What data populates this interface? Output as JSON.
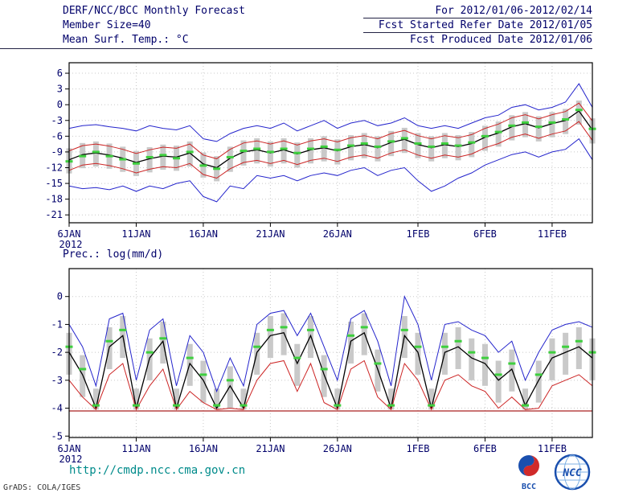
{
  "header": {
    "left_lines": [
      "DERF/NCC/BCC Monthly Forecast",
      "Member Size=40",
      "Mean Surf. Temp.: °C"
    ],
    "right_lines": [
      "For 2012/01/06-2012/02/14",
      "Fcst Started Refer Date 2012/01/05",
      "Fcst Produced Date 2012/01/06"
    ]
  },
  "footer": {
    "url": "http://cmdp.ncc.cma.gov.cn",
    "credit": "GrADS: COLA/IGES",
    "logos": [
      "BCC",
      "NCC"
    ]
  },
  "colors": {
    "text": "#00006a",
    "frame": "#000000",
    "grid": "#c8c8c8",
    "url": "#008b8b",
    "blue": "#2424cc",
    "red": "#cc2424",
    "black": "#000000",
    "green": "#3ecf3e",
    "bars": "#c9c9c9",
    "floor": "#aa2222"
  },
  "chart_data": [
    {
      "type": "line",
      "panel": "temperature",
      "title": "Mean Surf. Temp.: °C",
      "year": "2012",
      "n_points": 40,
      "x_tick_labels": [
        "6JAN",
        "11JAN",
        "16JAN",
        "21JAN",
        "26JAN",
        "1FEB",
        "6FEB",
        "11FEB"
      ],
      "x_tick_index": [
        0,
        5,
        10,
        15,
        20,
        26,
        31,
        36
      ],
      "ylim": [
        -22.5,
        8
      ],
      "yticks": [
        6,
        3,
        0,
        -3,
        -6,
        -9,
        -12,
        -15,
        -18,
        -21
      ],
      "series": [
        {
          "name": "ensemble-max",
          "color": "#2424cc",
          "width": 1,
          "values": [
            -4.5,
            -4.0,
            -3.8,
            -4.2,
            -4.5,
            -5.0,
            -4.0,
            -4.5,
            -4.8,
            -4.0,
            -6.5,
            -7.0,
            -5.5,
            -4.5,
            -4.0,
            -4.5,
            -3.5,
            -5.0,
            -4.0,
            -3.0,
            -4.5,
            -3.5,
            -3.0,
            -4.0,
            -3.5,
            -2.5,
            -4.0,
            -4.5,
            -4.0,
            -4.5,
            -3.5,
            -2.5,
            -2.0,
            -0.5,
            0.0,
            -1.0,
            -0.5,
            0.5,
            4.0,
            -0.5
          ]
        },
        {
          "name": "upper-quartile",
          "color": "#cc2424",
          "width": 1,
          "values": [
            -8.8,
            -7.8,
            -7.5,
            -7.9,
            -8.5,
            -9.3,
            -8.6,
            -8.1,
            -8.3,
            -7.5,
            -9.6,
            -10.3,
            -8.5,
            -7.3,
            -6.9,
            -7.5,
            -6.9,
            -7.7,
            -6.9,
            -6.5,
            -7.1,
            -6.3,
            -5.9,
            -6.5,
            -5.5,
            -4.9,
            -5.9,
            -6.5,
            -5.9,
            -6.3,
            -5.7,
            -4.5,
            -3.7,
            -2.5,
            -1.9,
            -2.7,
            -1.9,
            -1.3,
            0.3,
            -3.1
          ]
        },
        {
          "name": "ensemble-mean",
          "color": "#000000",
          "width": 1.3,
          "values": [
            -10.5,
            -9.5,
            -9.2,
            -9.6,
            -10.2,
            -11.0,
            -10.3,
            -9.8,
            -10.0,
            -9.2,
            -11.3,
            -12.0,
            -10.2,
            -9.0,
            -8.6,
            -9.2,
            -8.6,
            -9.4,
            -8.6,
            -8.2,
            -8.8,
            -8.0,
            -7.6,
            -8.2,
            -7.2,
            -6.6,
            -7.6,
            -8.2,
            -7.6,
            -8.0,
            -7.4,
            -6.2,
            -5.4,
            -4.2,
            -3.6,
            -4.4,
            -3.6,
            -3.0,
            -1.2,
            -4.8
          ]
        },
        {
          "name": "lower-quartile",
          "color": "#cc2424",
          "width": 1,
          "values": [
            -12.5,
            -11.5,
            -11.2,
            -11.6,
            -12.2,
            -13.0,
            -12.3,
            -11.8,
            -12.0,
            -11.2,
            -13.3,
            -14.0,
            -12.2,
            -11.0,
            -10.6,
            -11.2,
            -10.6,
            -11.4,
            -10.6,
            -10.2,
            -10.8,
            -10.0,
            -9.6,
            -10.2,
            -9.2,
            -8.6,
            -9.6,
            -10.2,
            -9.6,
            -10.0,
            -9.4,
            -8.2,
            -7.4,
            -6.2,
            -5.6,
            -6.4,
            -5.6,
            -5.0,
            -3.2,
            -6.8
          ]
        },
        {
          "name": "ensemble-min",
          "color": "#2424cc",
          "width": 1,
          "values": [
            -15.5,
            -16.0,
            -15.8,
            -16.2,
            -15.5,
            -16.5,
            -15.5,
            -16.0,
            -15.0,
            -14.5,
            -17.5,
            -18.5,
            -15.5,
            -16.0,
            -13.5,
            -14.0,
            -13.5,
            -14.5,
            -13.5,
            -13.0,
            -13.5,
            -12.5,
            -12.0,
            -13.5,
            -12.5,
            -12.0,
            -14.5,
            -16.5,
            -15.5,
            -14.0,
            -13.0,
            -11.5,
            -10.5,
            -9.5,
            -9.0,
            -10.0,
            -9.0,
            -8.5,
            -6.5,
            -10.5
          ]
        }
      ],
      "markers": {
        "name": "median",
        "color": "#3ecf3e",
        "values": [
          -10.8,
          -9.8,
          -9.0,
          -9.8,
          -10.4,
          -11.2,
          -10.0,
          -9.6,
          -10.2,
          -9.0,
          -11.6,
          -12.2,
          -10.0,
          -8.8,
          -8.4,
          -9.0,
          -8.4,
          -9.2,
          -8.4,
          -8.0,
          -8.6,
          -7.8,
          -7.4,
          -8.0,
          -7.0,
          -6.4,
          -7.4,
          -8.0,
          -7.4,
          -7.8,
          -7.2,
          -6.0,
          -5.2,
          -4.0,
          -3.4,
          -4.2,
          -3.4,
          -2.8,
          -1.0,
          -4.6
        ]
      },
      "bars": {
        "name": "ensemble-spread",
        "color": "#c9c9c9",
        "top": [
          -8.3,
          -7.3,
          -7.0,
          -7.4,
          -8.0,
          -8.8,
          -8.1,
          -7.6,
          -7.8,
          -7.0,
          -9.1,
          -9.8,
          -8.0,
          -6.8,
          -6.4,
          -7.0,
          -6.4,
          -7.2,
          -6.4,
          -6.0,
          -6.6,
          -5.8,
          -5.4,
          -6.0,
          -5.0,
          -4.4,
          -5.4,
          -6.0,
          -5.4,
          -5.8,
          -5.2,
          -4.0,
          -3.2,
          -2.0,
          -1.4,
          -2.2,
          -1.4,
          -0.8,
          0.8,
          -2.6
        ],
        "bottom": [
          -13.1,
          -12.1,
          -11.8,
          -12.2,
          -12.8,
          -13.6,
          -12.9,
          -12.4,
          -12.6,
          -11.8,
          -13.9,
          -14.6,
          -12.8,
          -11.6,
          -11.2,
          -11.8,
          -11.2,
          -12.0,
          -11.2,
          -10.8,
          -11.4,
          -10.6,
          -10.2,
          -10.8,
          -9.8,
          -9.2,
          -10.2,
          -10.8,
          -10.2,
          -10.6,
          -10.0,
          -8.8,
          -8.0,
          -6.8,
          -6.2,
          -7.0,
          -6.2,
          -5.6,
          -3.8,
          -7.4
        ]
      }
    },
    {
      "type": "line",
      "panel": "precipitation",
      "title": "Prec.: log(mm/d)",
      "year": "2012",
      "n_points": 40,
      "x_tick_labels": [
        "6JAN",
        "11JAN",
        "16JAN",
        "21JAN",
        "26JAN",
        "1FEB",
        "6FEB",
        "11FEB"
      ],
      "x_tick_index": [
        0,
        5,
        10,
        15,
        20,
        26,
        31,
        36
      ],
      "ylim": [
        -5.05,
        1
      ],
      "yticks": [
        0,
        -1,
        -2,
        -3,
        -4,
        -5
      ],
      "floor": {
        "name": "dry-threshold",
        "color": "#aa2222",
        "value": -4.1
      },
      "series": [
        {
          "name": "ensemble-max",
          "color": "#2424cc",
          "width": 1,
          "values": [
            -1.0,
            -1.8,
            -3.2,
            -0.8,
            -0.6,
            -3.0,
            -1.2,
            -0.8,
            -3.2,
            -1.4,
            -2.0,
            -3.4,
            -2.2,
            -3.2,
            -1.0,
            -0.6,
            -0.5,
            -1.4,
            -0.6,
            -1.8,
            -3.0,
            -0.8,
            -0.5,
            -1.6,
            -3.2,
            0.0,
            -1.0,
            -3.0,
            -1.0,
            -0.9,
            -1.2,
            -1.4,
            -2.0,
            -1.6,
            -3.0,
            -2.0,
            -1.2,
            -1.0,
            -0.9,
            -1.1
          ]
        },
        {
          "name": "ensemble-mean",
          "color": "#000000",
          "width": 1.3,
          "values": [
            -2.0,
            -2.8,
            -4.0,
            -1.8,
            -1.4,
            -4.0,
            -2.2,
            -1.6,
            -4.0,
            -2.4,
            -3.0,
            -4.0,
            -3.2,
            -4.0,
            -2.0,
            -1.4,
            -1.3,
            -2.4,
            -1.4,
            -2.8,
            -4.0,
            -1.6,
            -1.3,
            -2.6,
            -4.0,
            -1.4,
            -2.0,
            -4.0,
            -2.0,
            -1.8,
            -2.2,
            -2.4,
            -3.0,
            -2.6,
            -3.9,
            -3.0,
            -2.2,
            -2.0,
            -1.8,
            -2.2
          ]
        },
        {
          "name": "lower-quartile",
          "color": "#cc2424",
          "width": 1,
          "values": [
            -3.0,
            -3.6,
            -4.05,
            -2.8,
            -2.4,
            -4.05,
            -3.2,
            -2.6,
            -4.05,
            -3.4,
            -3.8,
            -4.05,
            -4.0,
            -4.05,
            -3.0,
            -2.4,
            -2.3,
            -3.4,
            -2.4,
            -3.8,
            -4.05,
            -2.6,
            -2.3,
            -3.6,
            -4.05,
            -2.4,
            -3.0,
            -4.05,
            -3.0,
            -2.8,
            -3.2,
            -3.4,
            -4.0,
            -3.6,
            -4.05,
            -4.0,
            -3.2,
            -3.0,
            -2.8,
            -3.2
          ]
        }
      ],
      "markers": {
        "name": "median",
        "color": "#3ecf3e",
        "values": [
          -1.8,
          -2.6,
          -3.9,
          -1.6,
          -1.2,
          -3.9,
          -2.0,
          -1.5,
          -3.9,
          -2.2,
          -2.8,
          -3.9,
          -3.0,
          -3.9,
          -1.8,
          -1.2,
          -1.1,
          -2.2,
          -1.2,
          -2.6,
          -3.9,
          -1.4,
          -1.1,
          -2.4,
          -3.9,
          -1.2,
          -1.8,
          -3.9,
          -1.8,
          -1.6,
          -2.0,
          -2.2,
          -2.8,
          -2.4,
          -3.9,
          -2.8,
          -2.0,
          -1.8,
          -1.6,
          -2.0
        ]
      },
      "bars": {
        "name": "ensemble-spread",
        "color": "#c9c9c9",
        "top": [
          -1.3,
          -2.1,
          -3.3,
          -1.1,
          -0.7,
          -3.3,
          -1.5,
          -0.9,
          -3.3,
          -1.7,
          -2.3,
          -3.3,
          -2.5,
          -3.3,
          -1.3,
          -0.7,
          -0.6,
          -1.7,
          -0.7,
          -2.1,
          -3.3,
          -0.9,
          -0.6,
          -1.9,
          -3.3,
          -0.7,
          -1.3,
          -3.3,
          -1.3,
          -1.1,
          -1.5,
          -1.7,
          -2.3,
          -1.9,
          -3.3,
          -2.3,
          -1.5,
          -1.3,
          -1.1,
          -1.5
        ],
        "bottom": [
          -2.8,
          -3.6,
          -4.05,
          -2.6,
          -2.2,
          -4.05,
          -3.0,
          -2.4,
          -4.05,
          -3.2,
          -3.8,
          -4.05,
          -4.0,
          -4.05,
          -2.8,
          -2.2,
          -2.1,
          -3.2,
          -2.2,
          -3.6,
          -4.05,
          -2.4,
          -2.1,
          -3.4,
          -4.05,
          -2.2,
          -2.8,
          -4.05,
          -2.8,
          -2.6,
          -3.0,
          -3.2,
          -3.8,
          -3.4,
          -4.05,
          -3.8,
          -3.0,
          -2.8,
          -2.6,
          -3.0
        ]
      }
    }
  ]
}
